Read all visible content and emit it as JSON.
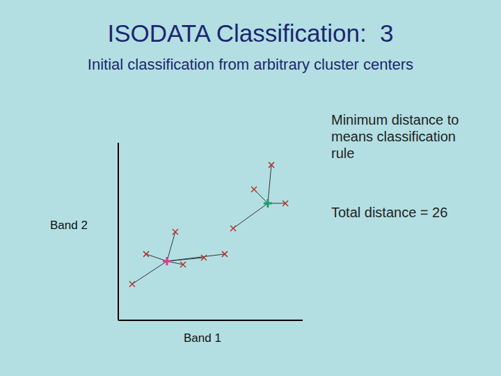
{
  "chart_data": {
    "type": "scatter",
    "title": "ISODATA Classification:  3",
    "subtitle": "Initial classification from arbitrary cluster centers",
    "x_label": "Band 1",
    "y_label": "Band 2",
    "annotations": [
      "Minimum distance to means classification rule",
      "Total distance = 26"
    ],
    "xlim": [
      0,
      100
    ],
    "ylim": [
      0,
      100
    ],
    "xticks": [],
    "yticks": [],
    "tick_labels": false,
    "grid": false,
    "series": [
      {
        "color": "#b5332a",
        "marker": "x",
        "x": [
          83.0,
          73.6,
          90.6,
          62.3,
          30.9,
          15.1,
          35.1,
          46.4,
          57.7,
          7.5
        ],
        "y": [
          87.5,
          73.7,
          65.9,
          51.8,
          49.8,
          37.3,
          31.4,
          35.3,
          37.3,
          20.4
        ]
      },
      {
        "color": "#1e9b6e",
        "marker": "plus",
        "x": [
          81.1
        ],
        "y": [
          65.9
        ]
      },
      {
        "color": "#e0358c",
        "marker": "plus",
        "x": [
          26.4
        ],
        "y": [
          33.3
        ]
      }
    ]
  }
}
